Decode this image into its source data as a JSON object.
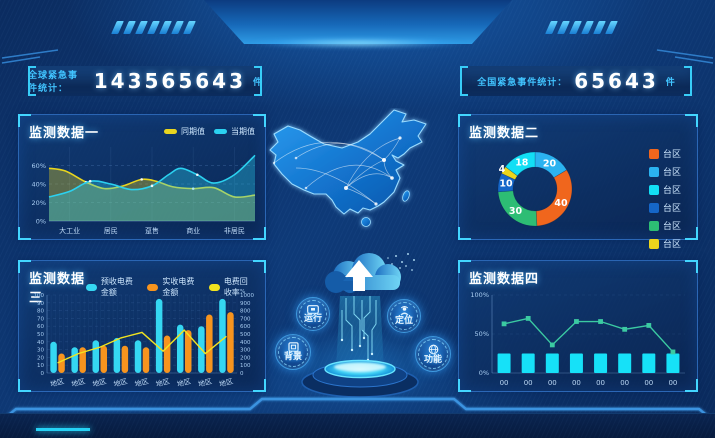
{
  "counters": {
    "left": {
      "label": "全球紧急事件统计：",
      "value": "143565643",
      "unit": "件"
    },
    "right": {
      "label": "全国紧急事件统计：",
      "value": "65643",
      "unit": "件"
    }
  },
  "panels": {
    "one": {
      "title": "监测数据一"
    },
    "two": {
      "title": "监测数据二"
    },
    "three": {
      "title": "监测数据三"
    },
    "four": {
      "title": "监测数据四"
    }
  },
  "center": {
    "buttons": [
      {
        "name": "run",
        "label": "运行"
      },
      {
        "name": "locate",
        "label": "定位"
      },
      {
        "name": "background",
        "label": "背景"
      },
      {
        "name": "function",
        "label": "功能"
      }
    ]
  },
  "colors": {
    "accent_cyan": "#35d7f2",
    "accent_orange": "#f7941e",
    "accent_yellow": "#ecd61c",
    "bracket_cyan": "#38cdf8",
    "panel_border": "#3070c3",
    "map_blue": "#1688e0"
  },
  "chart_data": [
    {
      "panel": "监测数据一",
      "type": "area",
      "legend_position": "top-right",
      "categories": [
        "大工业",
        "居民",
        "趸售",
        "商业",
        "非居民"
      ],
      "yticks": [
        0,
        20,
        40,
        60
      ],
      "ytick_suffix": "%",
      "ylim": [
        0,
        80
      ],
      "grid": true,
      "series": [
        {
          "name": "同期值",
          "color": "#e9d51f",
          "points": [
            [
              0,
              57
            ],
            [
              8,
              54
            ],
            [
              18,
              42
            ],
            [
              27,
              35
            ],
            [
              36,
              38
            ],
            [
              45,
              45
            ],
            [
              52,
              43
            ],
            [
              60,
              37
            ],
            [
              70,
              35
            ],
            [
              80,
              36
            ],
            [
              90,
              26
            ],
            [
              100,
              28
            ]
          ]
        },
        {
          "name": "当期值",
          "color": "#2bd1f0",
          "points": [
            [
              0,
              26
            ],
            [
              10,
              32
            ],
            [
              20,
              43
            ],
            [
              30,
              40
            ],
            [
              40,
              34
            ],
            [
              50,
              38
            ],
            [
              58,
              50
            ],
            [
              64,
              57
            ],
            [
              72,
              50
            ],
            [
              80,
              41
            ],
            [
              90,
              50
            ],
            [
              100,
              71
            ]
          ]
        }
      ]
    },
    {
      "panel": "监测数据二",
      "type": "donut",
      "start_angle": "top",
      "direction": "clockwise",
      "slices": [
        {
          "label": "台区",
          "value": 20,
          "color": "#2bb3f0"
        },
        {
          "label": "台区",
          "value": 40,
          "color": "#f0661d"
        },
        {
          "label": "台区",
          "value": 30,
          "color": "#2dbd74"
        },
        {
          "label": "台区",
          "value": 10,
          "color": "#1566c8"
        },
        {
          "label": "台区",
          "value": 4,
          "color": "#ecd61c"
        },
        {
          "label": "台区",
          "value": 18,
          "color": "#12dff5"
        }
      ],
      "legend": [
        {
          "label": "台区",
          "color": "#f0661d"
        },
        {
          "label": "台区",
          "color": "#2bb3f0"
        },
        {
          "label": "台区",
          "color": "#12dff5"
        },
        {
          "label": "台区",
          "color": "#1566c8"
        },
        {
          "label": "台区",
          "color": "#2dbd74"
        },
        {
          "label": "台区",
          "color": "#ecd61c"
        }
      ]
    },
    {
      "panel": "监测数据三",
      "type": "bar-line",
      "categories": [
        "地区",
        "地区",
        "地区",
        "地区",
        "地区",
        "地区",
        "地区",
        "地区",
        "地区"
      ],
      "left_axis": {
        "ticks": [
          0,
          10,
          20,
          30,
          40,
          50,
          60,
          70,
          80,
          90,
          100
        ],
        "suffix": ""
      },
      "right_axis": {
        "ticks": [
          0,
          100,
          200,
          300,
          400,
          500,
          600,
          700,
          800,
          900,
          1000
        ],
        "unit": "%"
      },
      "bars": [
        {
          "name": "预收电费金额",
          "color": "#35d7f2",
          "values": [
            40,
            33,
            42,
            45,
            42,
            95,
            62,
            60,
            95
          ]
        },
        {
          "name": "实收电费金额",
          "color": "#f7941e",
          "values": [
            25,
            33,
            35,
            35,
            33,
            48,
            55,
            75,
            78
          ]
        }
      ],
      "line": {
        "name": "电费回收率",
        "color": "#f2e41f",
        "values": [
          13,
          25,
          33,
          45,
          52,
          28,
          55,
          25,
          47
        ]
      }
    },
    {
      "panel": "监测数据四",
      "type": "bar-line",
      "categories": [
        "00",
        "00",
        "00",
        "00",
        "00",
        "00",
        "00",
        "00"
      ],
      "left_axis": {
        "ticks": [
          0,
          50,
          100
        ],
        "suffix": "%"
      },
      "bars": [
        {
          "name": "",
          "color": "#16e1f8",
          "values": [
            25,
            25,
            25,
            25,
            25,
            25,
            25,
            25
          ]
        }
      ],
      "line": {
        "name": "",
        "color": "#3bcaa2",
        "marker": "square",
        "values": [
          63,
          70,
          36,
          66,
          66,
          56,
          61,
          27
        ]
      }
    }
  ]
}
